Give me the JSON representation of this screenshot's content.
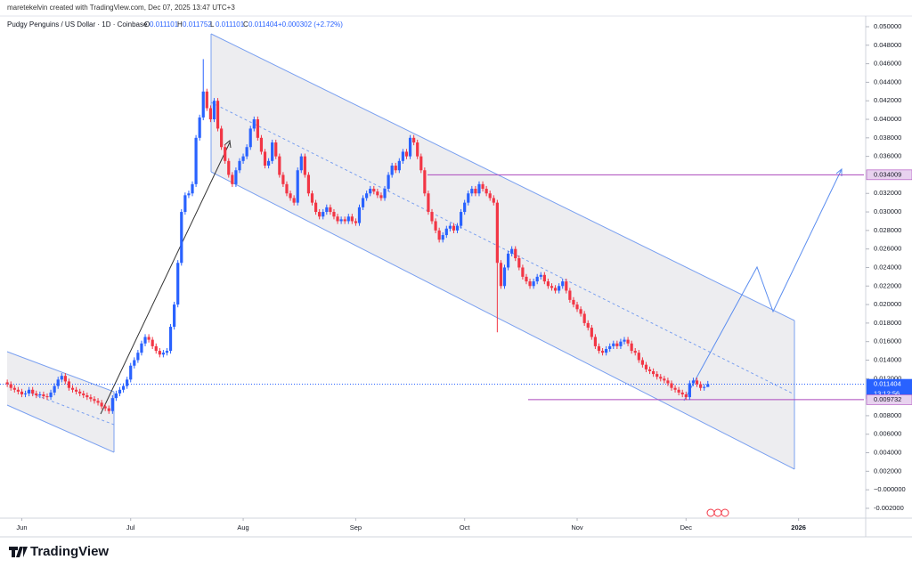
{
  "header": "maretekelvin created with TradingView.com, Dec 07, 2025 13:47 UTC+3",
  "brand": "TradingView",
  "chart_data": {
    "type": "candlestick",
    "title": "Pudgy Penguins / US Dollar · 1D · Coinbase",
    "ohlc_legend": [
      {
        "label": "O",
        "value": "0.011101"
      },
      {
        "label": "H",
        "value": "0.011752"
      },
      {
        "label": "L",
        "value": "0.011101"
      },
      {
        "label": "C",
        "value": "0.011404"
      }
    ],
    "change": "+0.000302 (+2.72%)",
    "up_color": "#2962ff",
    "down_color": "#f23645",
    "open": [
      0.0116,
      0.0114,
      0.011,
      0.0108,
      0.0106,
      0.0103,
      0.0104,
      0.0108,
      0.0104,
      0.0102,
      0.0103,
      0.0101,
      0.01,
      0.0105,
      0.0112,
      0.0119,
      0.0123,
      0.0117,
      0.011,
      0.0108,
      0.0106,
      0.0104,
      0.0102,
      0.01,
      0.0098,
      0.0096,
      0.0094,
      0.009,
      0.0088,
      0.0085,
      0.0099,
      0.0104,
      0.0108,
      0.0112,
      0.0119,
      0.0134,
      0.014,
      0.0148,
      0.0158,
      0.0165,
      0.0162,
      0.0155,
      0.015,
      0.0146,
      0.0148,
      0.015,
      0.0176,
      0.02,
      0.0245,
      0.03,
      0.0318,
      0.032,
      0.033,
      0.038,
      0.0402,
      0.043,
      0.0412,
      0.04,
      0.042,
      0.039,
      0.037,
      0.0355,
      0.034,
      0.033,
      0.0345,
      0.0355,
      0.036,
      0.037,
      0.039,
      0.04,
      0.038,
      0.0365,
      0.035,
      0.0355,
      0.0375,
      0.036,
      0.034,
      0.033,
      0.032,
      0.0315,
      0.031,
      0.0345,
      0.036,
      0.034,
      0.032,
      0.031,
      0.03,
      0.0295,
      0.03,
      0.0305,
      0.03,
      0.0295,
      0.029,
      0.0292,
      0.029,
      0.0295,
      0.029,
      0.0288,
      0.0305,
      0.0315,
      0.032,
      0.0325,
      0.0322,
      0.0318,
      0.0315,
      0.0325,
      0.034,
      0.035,
      0.0345,
      0.0355,
      0.0365,
      0.036,
      0.038,
      0.0375,
      0.036,
      0.0345,
      0.032,
      0.03,
      0.029,
      0.028,
      0.027,
      0.0275,
      0.0282,
      0.0285,
      0.028,
      0.0285,
      0.03,
      0.031,
      0.032,
      0.0325,
      0.032,
      0.033,
      0.0325,
      0.032,
      0.0315,
      0.031,
      0.0245,
      0.022,
      0.024,
      0.0255,
      0.026,
      0.025,
      0.024,
      0.023,
      0.0225,
      0.022,
      0.0225,
      0.023,
      0.0232,
      0.0225,
      0.022,
      0.0218,
      0.0215,
      0.022,
      0.0225,
      0.0215,
      0.0205,
      0.02,
      0.0195,
      0.019,
      0.018,
      0.0175,
      0.0165,
      0.0155,
      0.015,
      0.0148,
      0.0152,
      0.0155,
      0.0158,
      0.0155,
      0.016,
      0.0162,
      0.0158,
      0.015,
      0.0148,
      0.014,
      0.0135,
      0.013,
      0.0128,
      0.0125,
      0.0122,
      0.012,
      0.0118,
      0.0115,
      0.011,
      0.0108,
      0.0105,
      0.0103,
      0.01,
      0.0115,
      0.0118,
      0.0114,
      0.011,
      0.011101
    ],
    "high": [
      0.0119,
      0.0117,
      0.0113,
      0.0111,
      0.0109,
      0.0107,
      0.0111,
      0.0111,
      0.0107,
      0.0106,
      0.0106,
      0.0104,
      0.0108,
      0.0115,
      0.0122,
      0.0126,
      0.0126,
      0.012,
      0.0113,
      0.0111,
      0.0109,
      0.0107,
      0.0105,
      0.0103,
      0.0101,
      0.0099,
      0.0097,
      0.0093,
      0.0091,
      0.0102,
      0.0107,
      0.0111,
      0.0115,
      0.0122,
      0.0137,
      0.0143,
      0.0151,
      0.0161,
      0.0168,
      0.0168,
      0.0165,
      0.0158,
      0.0153,
      0.0151,
      0.0153,
      0.0179,
      0.0203,
      0.0248,
      0.0303,
      0.0321,
      0.0323,
      0.0333,
      0.0383,
      0.0405,
      0.0465,
      0.0433,
      0.0415,
      0.0423,
      0.0423,
      0.0393,
      0.0373,
      0.0358,
      0.0343,
      0.0348,
      0.0358,
      0.0363,
      0.0373,
      0.0393,
      0.0403,
      0.0403,
      0.0383,
      0.0368,
      0.0358,
      0.0378,
      0.0378,
      0.0363,
      0.0343,
      0.0333,
      0.0323,
      0.0318,
      0.0348,
      0.0363,
      0.0363,
      0.0343,
      0.0323,
      0.0313,
      0.0303,
      0.0303,
      0.0308,
      0.0308,
      0.0303,
      0.0298,
      0.0295,
      0.0295,
      0.0298,
      0.0298,
      0.0293,
      0.0308,
      0.0318,
      0.0323,
      0.0328,
      0.0328,
      0.0325,
      0.0321,
      0.0328,
      0.0343,
      0.0353,
      0.0353,
      0.0358,
      0.0368,
      0.0368,
      0.0383,
      0.0383,
      0.0378,
      0.0363,
      0.0348,
      0.0323,
      0.0303,
      0.0293,
      0.0283,
      0.0278,
      0.0285,
      0.0288,
      0.0288,
      0.0288,
      0.0303,
      0.0313,
      0.0323,
      0.0328,
      0.0328,
      0.0333,
      0.0333,
      0.0328,
      0.0323,
      0.0318,
      0.0313,
      0.0248,
      0.0243,
      0.0258,
      0.0263,
      0.0263,
      0.0253,
      0.0243,
      0.0233,
      0.0228,
      0.0228,
      0.0233,
      0.0235,
      0.0235,
      0.0228,
      0.0223,
      0.0221,
      0.0223,
      0.0228,
      0.0228,
      0.0218,
      0.0208,
      0.0203,
      0.0198,
      0.0193,
      0.0183,
      0.0178,
      0.0168,
      0.0158,
      0.0153,
      0.0155,
      0.0158,
      0.0161,
      0.0161,
      0.0163,
      0.0165,
      0.0165,
      0.0161,
      0.0153,
      0.0151,
      0.0143,
      0.0138,
      0.0133,
      0.0131,
      0.0128,
      0.0125,
      0.0123,
      0.0121,
      0.0118,
      0.0113,
      0.0111,
      0.0108,
      0.0106,
      0.0118,
      0.0121,
      0.0121,
      0.0117,
      0.0114,
      0.011752
    ],
    "low": [
      0.0111,
      0.0107,
      0.0105,
      0.0103,
      0.01,
      0.01,
      0.0101,
      0.0101,
      0.0099,
      0.0099,
      0.0098,
      0.0097,
      0.0097,
      0.0102,
      0.0109,
      0.0116,
      0.0114,
      0.0107,
      0.0105,
      0.0103,
      0.0101,
      0.0099,
      0.0097,
      0.0095,
      0.0093,
      0.0091,
      0.0087,
      0.0085,
      0.0082,
      0.0082,
      0.0096,
      0.0101,
      0.0105,
      0.0109,
      0.0116,
      0.0131,
      0.0137,
      0.0145,
      0.0155,
      0.0159,
      0.0152,
      0.0147,
      0.0143,
      0.0143,
      0.0145,
      0.0147,
      0.0173,
      0.0197,
      0.0242,
      0.0297,
      0.0315,
      0.0317,
      0.0327,
      0.0377,
      0.0399,
      0.0409,
      0.0397,
      0.0397,
      0.0387,
      0.0367,
      0.0352,
      0.0337,
      0.0327,
      0.0327,
      0.0342,
      0.0352,
      0.0357,
      0.0367,
      0.0387,
      0.0377,
      0.0362,
      0.0347,
      0.0347,
      0.0352,
      0.0357,
      0.0337,
      0.0327,
      0.0317,
      0.0312,
      0.0307,
      0.0307,
      0.0342,
      0.0337,
      0.0317,
      0.0307,
      0.0297,
      0.0292,
      0.0292,
      0.0297,
      0.0297,
      0.0292,
      0.0287,
      0.0287,
      0.0287,
      0.0287,
      0.0287,
      0.0285,
      0.0285,
      0.0302,
      0.0312,
      0.0317,
      0.0319,
      0.0315,
      0.0312,
      0.0312,
      0.0322,
      0.0337,
      0.0342,
      0.0342,
      0.0352,
      0.0357,
      0.0357,
      0.0372,
      0.0357,
      0.0342,
      0.0317,
      0.0297,
      0.0287,
      0.0277,
      0.0267,
      0.0267,
      0.0272,
      0.0279,
      0.0277,
      0.0277,
      0.0282,
      0.0297,
      0.0307,
      0.0317,
      0.0317,
      0.0317,
      0.0322,
      0.0317,
      0.0312,
      0.0307,
      0.017,
      0.0217,
      0.0217,
      0.0237,
      0.0252,
      0.0247,
      0.0237,
      0.0227,
      0.0222,
      0.0217,
      0.0217,
      0.0222,
      0.0227,
      0.0222,
      0.0217,
      0.0215,
      0.0212,
      0.0212,
      0.0217,
      0.0212,
      0.0202,
      0.0197,
      0.0192,
      0.0187,
      0.0177,
      0.0172,
      0.0162,
      0.0152,
      0.0147,
      0.0145,
      0.0145,
      0.0149,
      0.0152,
      0.0152,
      0.0152,
      0.0157,
      0.0155,
      0.0147,
      0.0145,
      0.0137,
      0.0132,
      0.0127,
      0.0125,
      0.0122,
      0.0119,
      0.0117,
      0.0115,
      0.0112,
      0.0107,
      0.0105,
      0.0102,
      0.01,
      0.0097,
      0.0097,
      0.0112,
      0.0111,
      0.0107,
      0.0107,
      0.011101
    ],
    "close": [
      0.0114,
      0.011,
      0.0108,
      0.0106,
      0.0103,
      0.0104,
      0.0108,
      0.0104,
      0.0102,
      0.0103,
      0.0101,
      0.01,
      0.0105,
      0.0112,
      0.0119,
      0.0123,
      0.0117,
      0.011,
      0.0108,
      0.0106,
      0.0104,
      0.0102,
      0.01,
      0.0098,
      0.0096,
      0.0094,
      0.009,
      0.0088,
      0.0085,
      0.0099,
      0.0104,
      0.0108,
      0.0112,
      0.0119,
      0.0134,
      0.014,
      0.0148,
      0.0158,
      0.0165,
      0.0162,
      0.0155,
      0.015,
      0.0146,
      0.0148,
      0.015,
      0.0176,
      0.02,
      0.0245,
      0.03,
      0.0318,
      0.032,
      0.033,
      0.038,
      0.0402,
      0.043,
      0.0412,
      0.04,
      0.042,
      0.039,
      0.037,
      0.0355,
      0.034,
      0.033,
      0.0345,
      0.0355,
      0.036,
      0.037,
      0.039,
      0.04,
      0.038,
      0.0365,
      0.035,
      0.0355,
      0.0375,
      0.036,
      0.034,
      0.033,
      0.032,
      0.0315,
      0.031,
      0.0345,
      0.036,
      0.034,
      0.032,
      0.031,
      0.03,
      0.0295,
      0.03,
      0.0305,
      0.03,
      0.0295,
      0.029,
      0.0292,
      0.029,
      0.0295,
      0.029,
      0.0288,
      0.0305,
      0.0315,
      0.032,
      0.0325,
      0.0322,
      0.0318,
      0.0315,
      0.0325,
      0.034,
      0.035,
      0.0345,
      0.0355,
      0.0365,
      0.036,
      0.038,
      0.0375,
      0.036,
      0.0345,
      0.032,
      0.03,
      0.029,
      0.028,
      0.027,
      0.0275,
      0.0282,
      0.0285,
      0.028,
      0.0285,
      0.03,
      0.031,
      0.032,
      0.0325,
      0.032,
      0.033,
      0.0325,
      0.032,
      0.0315,
      0.031,
      0.0245,
      0.022,
      0.024,
      0.0255,
      0.026,
      0.025,
      0.024,
      0.023,
      0.0225,
      0.022,
      0.0225,
      0.023,
      0.0232,
      0.0225,
      0.022,
      0.0218,
      0.0215,
      0.022,
      0.0225,
      0.0215,
      0.0205,
      0.02,
      0.0195,
      0.019,
      0.018,
      0.0175,
      0.0165,
      0.0155,
      0.015,
      0.0148,
      0.0152,
      0.0155,
      0.0158,
      0.0155,
      0.016,
      0.0162,
      0.0158,
      0.015,
      0.0148,
      0.014,
      0.0135,
      0.013,
      0.0128,
      0.0125,
      0.0122,
      0.012,
      0.0118,
      0.0115,
      0.011,
      0.0108,
      0.0105,
      0.0103,
      0.01,
      0.0115,
      0.0118,
      0.0114,
      0.011,
      0.0111,
      0.011404
    ],
    "xlim": [
      -2,
      236
    ],
    "xticks": [
      {
        "value": 4,
        "label": "Jun"
      },
      {
        "value": 34,
        "label": "Jul"
      },
      {
        "value": 65,
        "label": "Aug"
      },
      {
        "value": 96,
        "label": "Sep"
      },
      {
        "value": 126,
        "label": "Oct"
      },
      {
        "value": 157,
        "label": "Nov"
      },
      {
        "value": 187,
        "label": "Dec"
      },
      {
        "value": 218,
        "label": "2026"
      }
    ],
    "ylim": [
      -0.00287,
      0.05096
    ],
    "yticks": [
      {
        "value": 0.05,
        "label": "0.050000"
      },
      {
        "value": 0.048,
        "label": "0.048000"
      },
      {
        "value": 0.046,
        "label": "0.046000"
      },
      {
        "value": 0.044,
        "label": "0.044000"
      },
      {
        "value": 0.042,
        "label": "0.042000"
      },
      {
        "value": 0.04,
        "label": "0.040000"
      },
      {
        "value": 0.038,
        "label": "0.038000"
      },
      {
        "value": 0.036,
        "label": "0.036000"
      },
      {
        "value": 0.032,
        "label": "0.032000"
      },
      {
        "value": 0.03,
        "label": "0.030000"
      },
      {
        "value": 0.028,
        "label": "0.028000"
      },
      {
        "value": 0.026,
        "label": "0.026000"
      },
      {
        "value": 0.024,
        "label": "0.024000"
      },
      {
        "value": 0.022,
        "label": "0.022000"
      },
      {
        "value": 0.02,
        "label": "0.020000"
      },
      {
        "value": 0.018,
        "label": "0.018000"
      },
      {
        "value": 0.016,
        "label": "0.016000"
      },
      {
        "value": 0.014,
        "label": "0.014000"
      },
      {
        "value": 0.012,
        "label": "0.012000"
      },
      {
        "value": 0.008,
        "label": "0.008000"
      },
      {
        "value": 0.006,
        "label": "0.006000"
      },
      {
        "value": 0.004,
        "label": "0.004000"
      },
      {
        "value": 0.002,
        "label": "0.002000"
      },
      {
        "value": 0,
        "label": "−0.000000"
      },
      {
        "value": -0.002,
        "label": "-0.002000"
      }
    ],
    "grid": false,
    "price_lines": [
      {
        "value": 0.034009,
        "color": "#ab47bc",
        "style": "solid"
      },
      {
        "value": 0.011404,
        "color": "#2962ff",
        "style": "dotted",
        "countdown": "13:12:56"
      },
      {
        "value": 0.009732,
        "color": "#ab47bc",
        "style": "solid"
      }
    ]
  }
}
